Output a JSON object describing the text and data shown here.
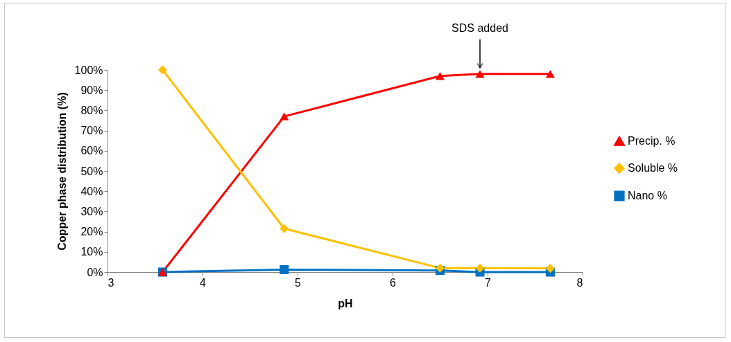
{
  "chart_data": {
    "type": "line",
    "xlabel": "pH",
    "ylabel": "Copper phase distribution (%)",
    "x": [
      3.58,
      4.86,
      6.5,
      6.92,
      7.66
    ],
    "series": [
      {
        "name": "Precip. %",
        "color": "#ff0000",
        "marker": "triangle",
        "values": [
          0,
          77,
          97,
          98,
          98
        ]
      },
      {
        "name": "Soluble %",
        "color": "#ffc000",
        "marker": "diamond",
        "values": [
          100,
          21.5,
          2,
          2,
          1.8
        ]
      },
      {
        "name": "Nano %",
        "color": "#0070c0",
        "marker": "square",
        "values": [
          0,
          1.2,
          0.8,
          0,
          0
        ]
      }
    ],
    "xlim": [
      3,
      8
    ],
    "xticks": [
      3,
      4,
      5,
      6,
      7,
      8
    ],
    "ylim": [
      0,
      100
    ],
    "yticks": [
      {
        "value": 0,
        "label": "0%"
      },
      {
        "value": 10,
        "label": "10%"
      },
      {
        "value": 20,
        "label": "20%"
      },
      {
        "value": 30,
        "label": "30%"
      },
      {
        "value": 40,
        "label": "40%"
      },
      {
        "value": 50,
        "label": "50%"
      },
      {
        "value": 60,
        "label": "60%"
      },
      {
        "value": 70,
        "label": "70%"
      },
      {
        "value": 80,
        "label": "80%"
      },
      {
        "value": 90,
        "label": "90%"
      },
      {
        "value": 100,
        "label": "100%"
      }
    ],
    "annotations": [
      {
        "text": "SDS added",
        "x": 6.92,
        "y": 98
      }
    ],
    "grid": false,
    "legend": "right"
  }
}
